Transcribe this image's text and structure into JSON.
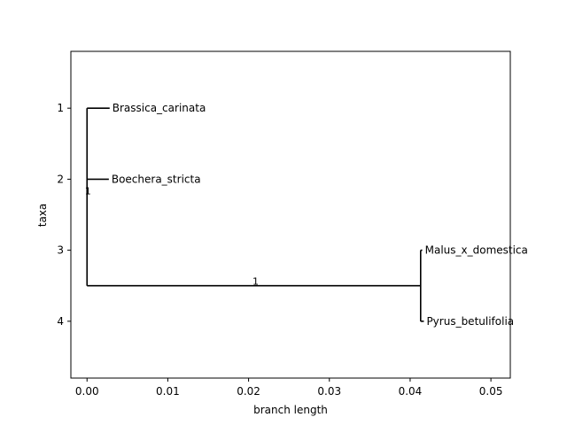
{
  "chart_data": {
    "type": "phylogenetic-tree",
    "xlabel": "branch length",
    "ylabel": "taxa",
    "xlim": [
      -0.002,
      0.0524
    ],
    "ylim": [
      4.8,
      0.2
    ],
    "xticks": [
      0.0,
      0.01,
      0.02,
      0.03,
      0.04,
      0.05
    ],
    "xtick_labels": [
      "0.00",
      "0.01",
      "0.02",
      "0.03",
      "0.04",
      "0.05"
    ],
    "yticks": [
      1,
      2,
      3,
      4
    ],
    "ytick_labels": [
      "1",
      "2",
      "3",
      "4"
    ],
    "grid": false,
    "leaves": [
      {
        "name": "Brassica_carinata",
        "x": 0.0028,
        "y": 1
      },
      {
        "name": "Boechera_stricta",
        "x": 0.0027,
        "y": 2
      },
      {
        "name": "Malus_x_domestica",
        "x": 0.0415,
        "y": 3
      },
      {
        "name": "Pyrus_betulifolia",
        "x": 0.0417,
        "y": 4
      }
    ],
    "internal_nodes": [
      {
        "id": "root",
        "x": 0.0,
        "y_range": [
          1,
          3.5
        ],
        "support": "1",
        "support_y": 2.2
      },
      {
        "id": "rosaceae",
        "x": 0.0413,
        "y_range": [
          3,
          4
        ],
        "y": 3.5,
        "support": "1"
      }
    ],
    "branches": [
      {
        "from": "root",
        "to": "Brassica_carinata",
        "x0": 0.0,
        "x1": 0.0028,
        "y": 1
      },
      {
        "from": "root",
        "to": "Boechera_stricta",
        "x0": 0.0,
        "x1": 0.0027,
        "y": 2
      },
      {
        "from": "root",
        "to": "rosaceae",
        "x0": 0.0,
        "x1": 0.0413,
        "y": 3.5
      },
      {
        "from": "rosaceae",
        "to": "Malus_x_domestica",
        "x0": 0.0413,
        "x1": 0.0415,
        "y": 3
      },
      {
        "from": "rosaceae",
        "to": "Pyrus_betulifolia",
        "x0": 0.0413,
        "x1": 0.0417,
        "y": 4
      }
    ]
  }
}
